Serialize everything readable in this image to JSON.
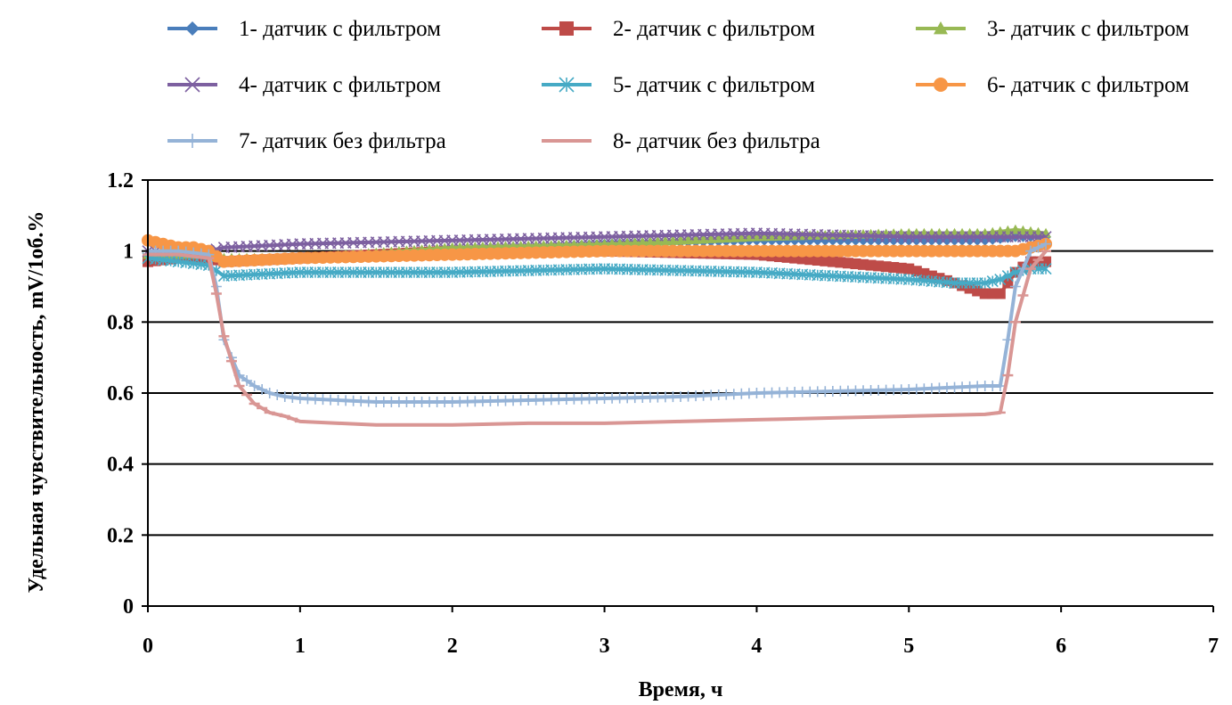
{
  "chart_data": {
    "type": "line",
    "title": "",
    "xlabel": "Время, ч",
    "ylabel": "Удельная чувствительность,  mV/1об.%",
    "xlim": [
      0,
      7
    ],
    "ylim": [
      0,
      1.2
    ],
    "x_ticks": [
      "0",
      "1",
      "2",
      "3",
      "4",
      "5",
      "6",
      "7"
    ],
    "y_ticks": [
      "0",
      "0.2",
      "0.4",
      "0.6",
      "0.8",
      "1",
      "1.2"
    ],
    "grid": "horizontal",
    "legend_position": "top",
    "series": [
      {
        "name": "1- датчик с фильтром",
        "color": "#4a7ebb",
        "marker": "diamond",
        "x": [
          0,
          0.2,
          0.4,
          0.5,
          1,
          2,
          3,
          4,
          5,
          5.5,
          5.7,
          5.9
        ],
        "y": [
          0.97,
          0.98,
          0.98,
          0.97,
          0.98,
          1.0,
          1.02,
          1.03,
          1.03,
          1.03,
          1.04,
          1.04
        ]
      },
      {
        "name": "2- датчик с фильтром",
        "color": "#be4b48",
        "marker": "square",
        "x": [
          0,
          0.2,
          0.4,
          0.5,
          1,
          2,
          3,
          4,
          4.5,
          5,
          5.3,
          5.5,
          5.6,
          5.7,
          5.8,
          5.9
        ],
        "y": [
          0.97,
          0.98,
          0.98,
          0.97,
          0.98,
          1.0,
          1.0,
          0.99,
          0.97,
          0.95,
          0.91,
          0.88,
          0.88,
          0.94,
          0.97,
          0.97
        ]
      },
      {
        "name": "3- датчик с фильтром",
        "color": "#98b954",
        "marker": "triangle",
        "x": [
          0,
          0.2,
          0.4,
          0.5,
          1,
          2,
          3,
          4,
          5,
          5.5,
          5.7,
          5.9
        ],
        "y": [
          0.99,
          0.99,
          0.99,
          0.98,
          0.98,
          1.01,
          1.02,
          1.04,
          1.05,
          1.05,
          1.06,
          1.05
        ]
      },
      {
        "name": "4- датчик с фильтром",
        "color": "#7d60a0",
        "marker": "x",
        "x": [
          0,
          0.2,
          0.4,
          0.5,
          1,
          2,
          3,
          4,
          5,
          5.5,
          5.7,
          5.9
        ],
        "y": [
          1.0,
          1.0,
          1.0,
          1.01,
          1.02,
          1.03,
          1.04,
          1.05,
          1.04,
          1.04,
          1.04,
          1.04
        ]
      },
      {
        "name": "5- датчик с фильтром",
        "color": "#46aac5",
        "marker": "star",
        "x": [
          0,
          0.2,
          0.4,
          0.5,
          1,
          2,
          3,
          4,
          4.5,
          5,
          5.3,
          5.5,
          5.6,
          5.7,
          5.8,
          5.9
        ],
        "y": [
          0.98,
          0.97,
          0.96,
          0.93,
          0.94,
          0.94,
          0.95,
          0.94,
          0.93,
          0.92,
          0.91,
          0.91,
          0.92,
          0.94,
          0.95,
          0.95
        ]
      },
      {
        "name": "6- датчик с фильтром",
        "color": "#f79646",
        "marker": "circle",
        "x": [
          0,
          0.1,
          0.2,
          0.3,
          0.4,
          0.5,
          1,
          2,
          3,
          4,
          5,
          5.5,
          5.7,
          5.8,
          5.9
        ],
        "y": [
          1.03,
          1.02,
          1.01,
          1.01,
          1.0,
          0.97,
          0.98,
          0.99,
          1.0,
          1.0,
          1.0,
          1.0,
          1.0,
          1.01,
          1.02
        ]
      },
      {
        "name": "7- датчик без фильтра",
        "color": "#95b3d7",
        "marker": "plus",
        "x": [
          0,
          0.2,
          0.4,
          0.45,
          0.5,
          0.6,
          0.7,
          0.8,
          0.9,
          1,
          1.5,
          2,
          2.5,
          3,
          3.5,
          4,
          4.5,
          5,
          5.5,
          5.6,
          5.65,
          5.7,
          5.8,
          5.9
        ],
        "y": [
          1.0,
          1.0,
          0.99,
          0.9,
          0.75,
          0.65,
          0.62,
          0.6,
          0.59,
          0.585,
          0.575,
          0.575,
          0.58,
          0.585,
          0.59,
          0.6,
          0.605,
          0.61,
          0.62,
          0.62,
          0.75,
          0.9,
          1.0,
          1.02
        ]
      },
      {
        "name": "8- датчик без фильтра",
        "color": "#d99694",
        "marker": "dash",
        "x": [
          0,
          0.2,
          0.4,
          0.45,
          0.5,
          0.6,
          0.7,
          0.8,
          0.9,
          1,
          1.5,
          2,
          2.5,
          3,
          3.5,
          4,
          4.5,
          5,
          5.5,
          5.6,
          5.65,
          5.7,
          5.8,
          5.9
        ],
        "y": [
          0.99,
          0.99,
          0.98,
          0.88,
          0.76,
          0.62,
          0.57,
          0.545,
          0.535,
          0.52,
          0.51,
          0.51,
          0.515,
          0.515,
          0.52,
          0.525,
          0.53,
          0.535,
          0.54,
          0.545,
          0.65,
          0.8,
          0.95,
          1.0
        ]
      }
    ]
  }
}
